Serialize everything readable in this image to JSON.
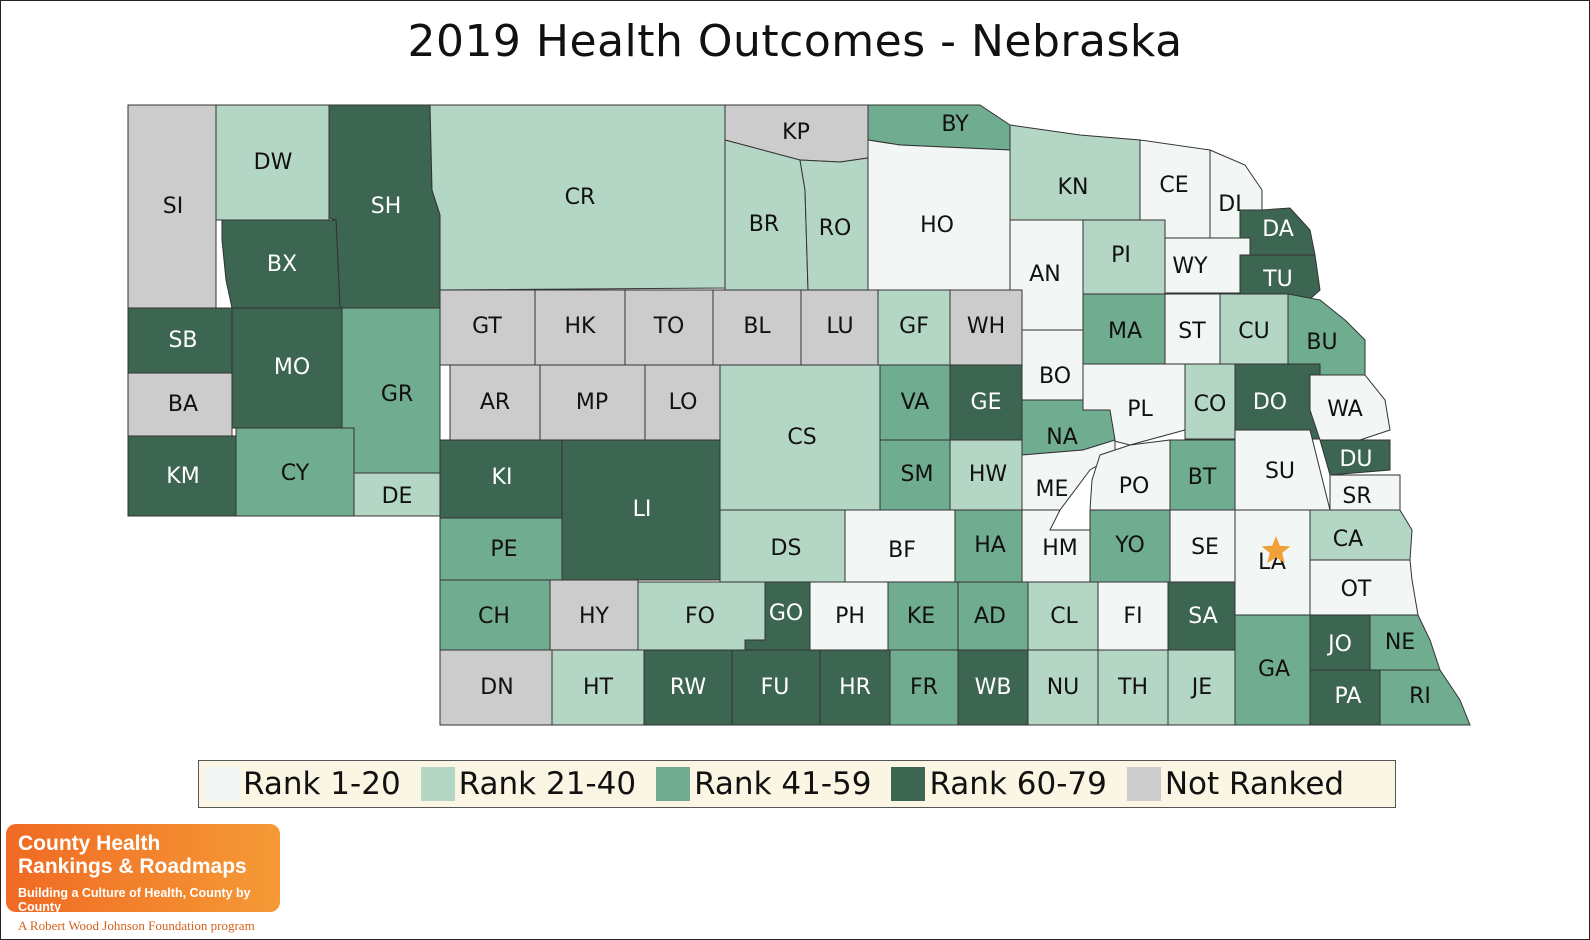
{
  "title": "2019 Health Outcomes - Nebraska",
  "colors": {
    "rank_1_20": "#f2f6f4",
    "rank_21_40": "#b4d6c5",
    "rank_41_59": "#70ac90",
    "rank_60_79": "#3d6652",
    "not_ranked": "#cccccc",
    "star": "#f2a03a"
  },
  "legend": [
    {
      "label": "Rank 1-20",
      "color": "#f2f6f4"
    },
    {
      "label": "Rank 21-40",
      "color": "#b4d6c5"
    },
    {
      "label": "Rank 41-59",
      "color": "#70ac90"
    },
    {
      "label": "Rank 60-79",
      "color": "#3d6652"
    },
    {
      "label": "Not Ranked",
      "color": "#cccccc"
    }
  ],
  "counties": [
    {
      "code": "SI",
      "category": "not_ranked"
    },
    {
      "code": "DW",
      "category": "rank_21_40"
    },
    {
      "code": "SH",
      "category": "rank_60_79"
    },
    {
      "code": "CR",
      "category": "rank_21_40"
    },
    {
      "code": "KP",
      "category": "not_ranked"
    },
    {
      "code": "BY",
      "category": "rank_41_59"
    },
    {
      "code": "BR",
      "category": "rank_21_40"
    },
    {
      "code": "RO",
      "category": "rank_21_40"
    },
    {
      "code": "HO",
      "category": "rank_1_20"
    },
    {
      "code": "KN",
      "category": "rank_21_40"
    },
    {
      "code": "CE",
      "category": "rank_1_20"
    },
    {
      "code": "DI",
      "category": "rank_1_20"
    },
    {
      "code": "DA",
      "category": "rank_60_79"
    },
    {
      "code": "BX",
      "category": "rank_60_79"
    },
    {
      "code": "PI",
      "category": "rank_21_40"
    },
    {
      "code": "WY",
      "category": "rank_1_20"
    },
    {
      "code": "TU",
      "category": "rank_60_79"
    },
    {
      "code": "AN",
      "category": "rank_1_20"
    },
    {
      "code": "SB",
      "category": "rank_60_79"
    },
    {
      "code": "MO",
      "category": "rank_60_79"
    },
    {
      "code": "GT",
      "category": "not_ranked"
    },
    {
      "code": "HK",
      "category": "not_ranked"
    },
    {
      "code": "TO",
      "category": "not_ranked"
    },
    {
      "code": "BL",
      "category": "not_ranked"
    },
    {
      "code": "LU",
      "category": "not_ranked"
    },
    {
      "code": "GF",
      "category": "rank_21_40"
    },
    {
      "code": "WH",
      "category": "not_ranked"
    },
    {
      "code": "MA",
      "category": "rank_41_59"
    },
    {
      "code": "ST",
      "category": "rank_1_20"
    },
    {
      "code": "CU",
      "category": "rank_21_40"
    },
    {
      "code": "BU",
      "category": "rank_41_59"
    },
    {
      "code": "BA",
      "category": "not_ranked"
    },
    {
      "code": "GR",
      "category": "rank_41_59"
    },
    {
      "code": "AR",
      "category": "not_ranked"
    },
    {
      "code": "MP",
      "category": "not_ranked"
    },
    {
      "code": "LO",
      "category": "not_ranked"
    },
    {
      "code": "CS",
      "category": "rank_21_40"
    },
    {
      "code": "VA",
      "category": "rank_41_59"
    },
    {
      "code": "GE",
      "category": "rank_60_79"
    },
    {
      "code": "BO",
      "category": "rank_1_20"
    },
    {
      "code": "PL",
      "category": "rank_1_20"
    },
    {
      "code": "CO",
      "category": "rank_21_40"
    },
    {
      "code": "DO",
      "category": "rank_60_79"
    },
    {
      "code": "WA",
      "category": "rank_1_20"
    },
    {
      "code": "NA",
      "category": "rank_41_59"
    },
    {
      "code": "KM",
      "category": "rank_60_79"
    },
    {
      "code": "CY",
      "category": "rank_41_59"
    },
    {
      "code": "KI",
      "category": "rank_60_79"
    },
    {
      "code": "SM",
      "category": "rank_41_59"
    },
    {
      "code": "HW",
      "category": "rank_21_40"
    },
    {
      "code": "ME",
      "category": "rank_1_20"
    },
    {
      "code": "PO",
      "category": "rank_1_20"
    },
    {
      "code": "BT",
      "category": "rank_41_59"
    },
    {
      "code": "SU",
      "category": "rank_1_20"
    },
    {
      "code": "DU",
      "category": "rank_60_79"
    },
    {
      "code": "DE",
      "category": "rank_21_40"
    },
    {
      "code": "LI",
      "category": "rank_60_79"
    },
    {
      "code": "SR",
      "category": "rank_1_20"
    },
    {
      "code": "PE",
      "category": "rank_41_59"
    },
    {
      "code": "DS",
      "category": "rank_21_40"
    },
    {
      "code": "BF",
      "category": "rank_1_20"
    },
    {
      "code": "HA",
      "category": "rank_41_59"
    },
    {
      "code": "HM",
      "category": "rank_1_20"
    },
    {
      "code": "YO",
      "category": "rank_41_59"
    },
    {
      "code": "SE",
      "category": "rank_1_20"
    },
    {
      "code": "LA",
      "category": "rank_1_20"
    },
    {
      "code": "CA",
      "category": "rank_21_40"
    },
    {
      "code": "OT",
      "category": "rank_1_20"
    },
    {
      "code": "CH",
      "category": "rank_41_59"
    },
    {
      "code": "HY",
      "category": "not_ranked"
    },
    {
      "code": "FO",
      "category": "rank_21_40"
    },
    {
      "code": "GO",
      "category": "rank_60_79"
    },
    {
      "code": "PH",
      "category": "rank_1_20"
    },
    {
      "code": "KE",
      "category": "rank_41_59"
    },
    {
      "code": "AD",
      "category": "rank_41_59"
    },
    {
      "code": "CL",
      "category": "rank_21_40"
    },
    {
      "code": "FI",
      "category": "rank_1_20"
    },
    {
      "code": "SA",
      "category": "rank_60_79"
    },
    {
      "code": "GA",
      "category": "rank_41_59"
    },
    {
      "code": "JO",
      "category": "rank_60_79"
    },
    {
      "code": "NE",
      "category": "rank_41_59"
    },
    {
      "code": "DN",
      "category": "not_ranked"
    },
    {
      "code": "HT",
      "category": "rank_21_40"
    },
    {
      "code": "RW",
      "category": "rank_60_79"
    },
    {
      "code": "FU",
      "category": "rank_60_79"
    },
    {
      "code": "HR",
      "category": "rank_60_79"
    },
    {
      "code": "FR",
      "category": "rank_41_59"
    },
    {
      "code": "WB",
      "category": "rank_60_79"
    },
    {
      "code": "NU",
      "category": "rank_21_40"
    },
    {
      "code": "TH",
      "category": "rank_21_40"
    },
    {
      "code": "JE",
      "category": "rank_21_40"
    },
    {
      "code": "PA",
      "category": "rank_60_79"
    },
    {
      "code": "RI",
      "category": "rank_41_59"
    }
  ],
  "capital_marker": {
    "county": "LA",
    "icon": "star-icon"
  },
  "logo": {
    "line1": "County Health",
    "line2": "Rankings & Roadmaps",
    "tagline": "Building a Culture of Health, County by County",
    "foundation": "A Robert Wood Johnson Foundation program"
  }
}
